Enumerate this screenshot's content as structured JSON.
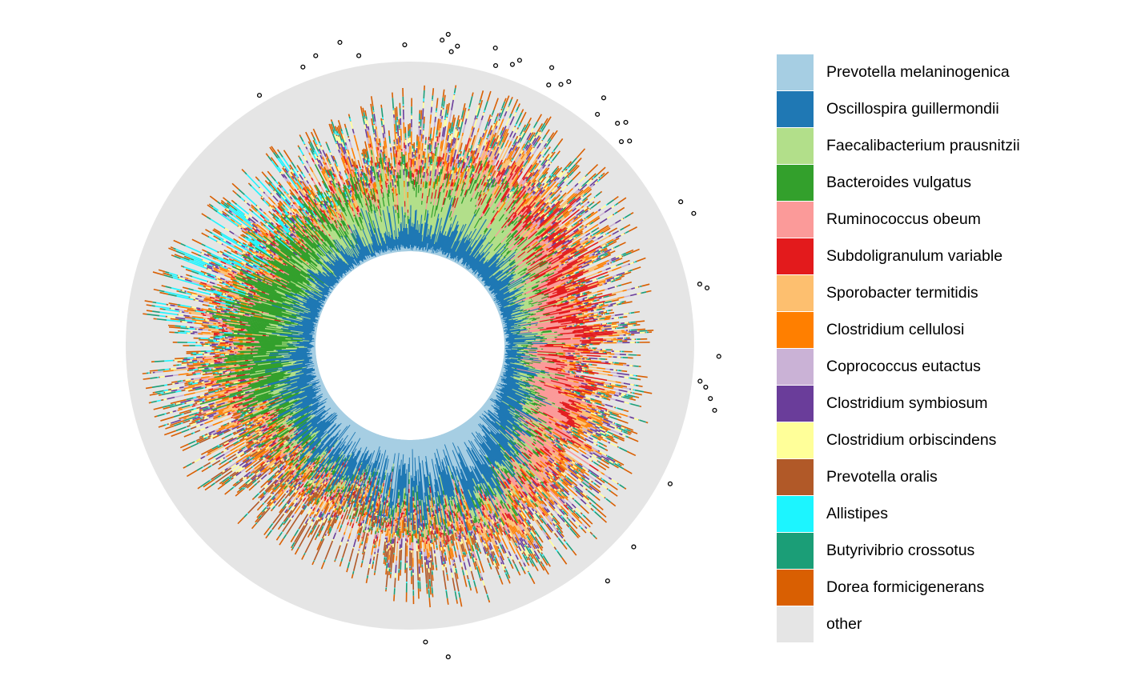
{
  "chart_data": {
    "type": "circular-stacked-bar",
    "title": "",
    "legend_position": "right",
    "grid": false,
    "n_samples": 900,
    "categories": [
      {
        "name": "Prevotella melaninogenica",
        "color": "#A6CEE3"
      },
      {
        "name": "Oscillospira guillermondii",
        "color": "#1F78B4"
      },
      {
        "name": "Faecalibacterium prausnitzii",
        "color": "#B2DF8A"
      },
      {
        "name": "Bacteroides vulgatus",
        "color": "#33A02C"
      },
      {
        "name": "Ruminococcus obeum",
        "color": "#FB9A99"
      },
      {
        "name": "Subdoligranulum variable",
        "color": "#E31A1C"
      },
      {
        "name": "Sporobacter termitidis",
        "color": "#FDBF6F"
      },
      {
        "name": "Clostridium cellulosi",
        "color": "#FF7F00"
      },
      {
        "name": "Coprococcus eutactus",
        "color": "#CAB2D6"
      },
      {
        "name": "Clostridium symbiosum",
        "color": "#6A3D9A"
      },
      {
        "name": "Clostridium orbiscindens",
        "color": "#FFFF99"
      },
      {
        "name": "Prevotella oralis",
        "color": "#B15928"
      },
      {
        "name": "Allistipes",
        "color": "#1CF5FF"
      },
      {
        "name": "Butyrivibrio crossotus",
        "color": "#1B9E77"
      },
      {
        "name": "Dorea formicigenerans",
        "color": "#D95F02"
      },
      {
        "name": "other",
        "color": "#E5E5E5"
      }
    ],
    "outlier_angles_deg": [
      -31,
      -21,
      -18,
      -13,
      -10,
      -1,
      6,
      7,
      8,
      9,
      16,
      17,
      20,
      21,
      27,
      28,
      30,
      31,
      38,
      39,
      43,
      44,
      46,
      47,
      62,
      65,
      78,
      79,
      92,
      97,
      98,
      100,
      102,
      118,
      132,
      140,
      173,
      177
    ]
  }
}
